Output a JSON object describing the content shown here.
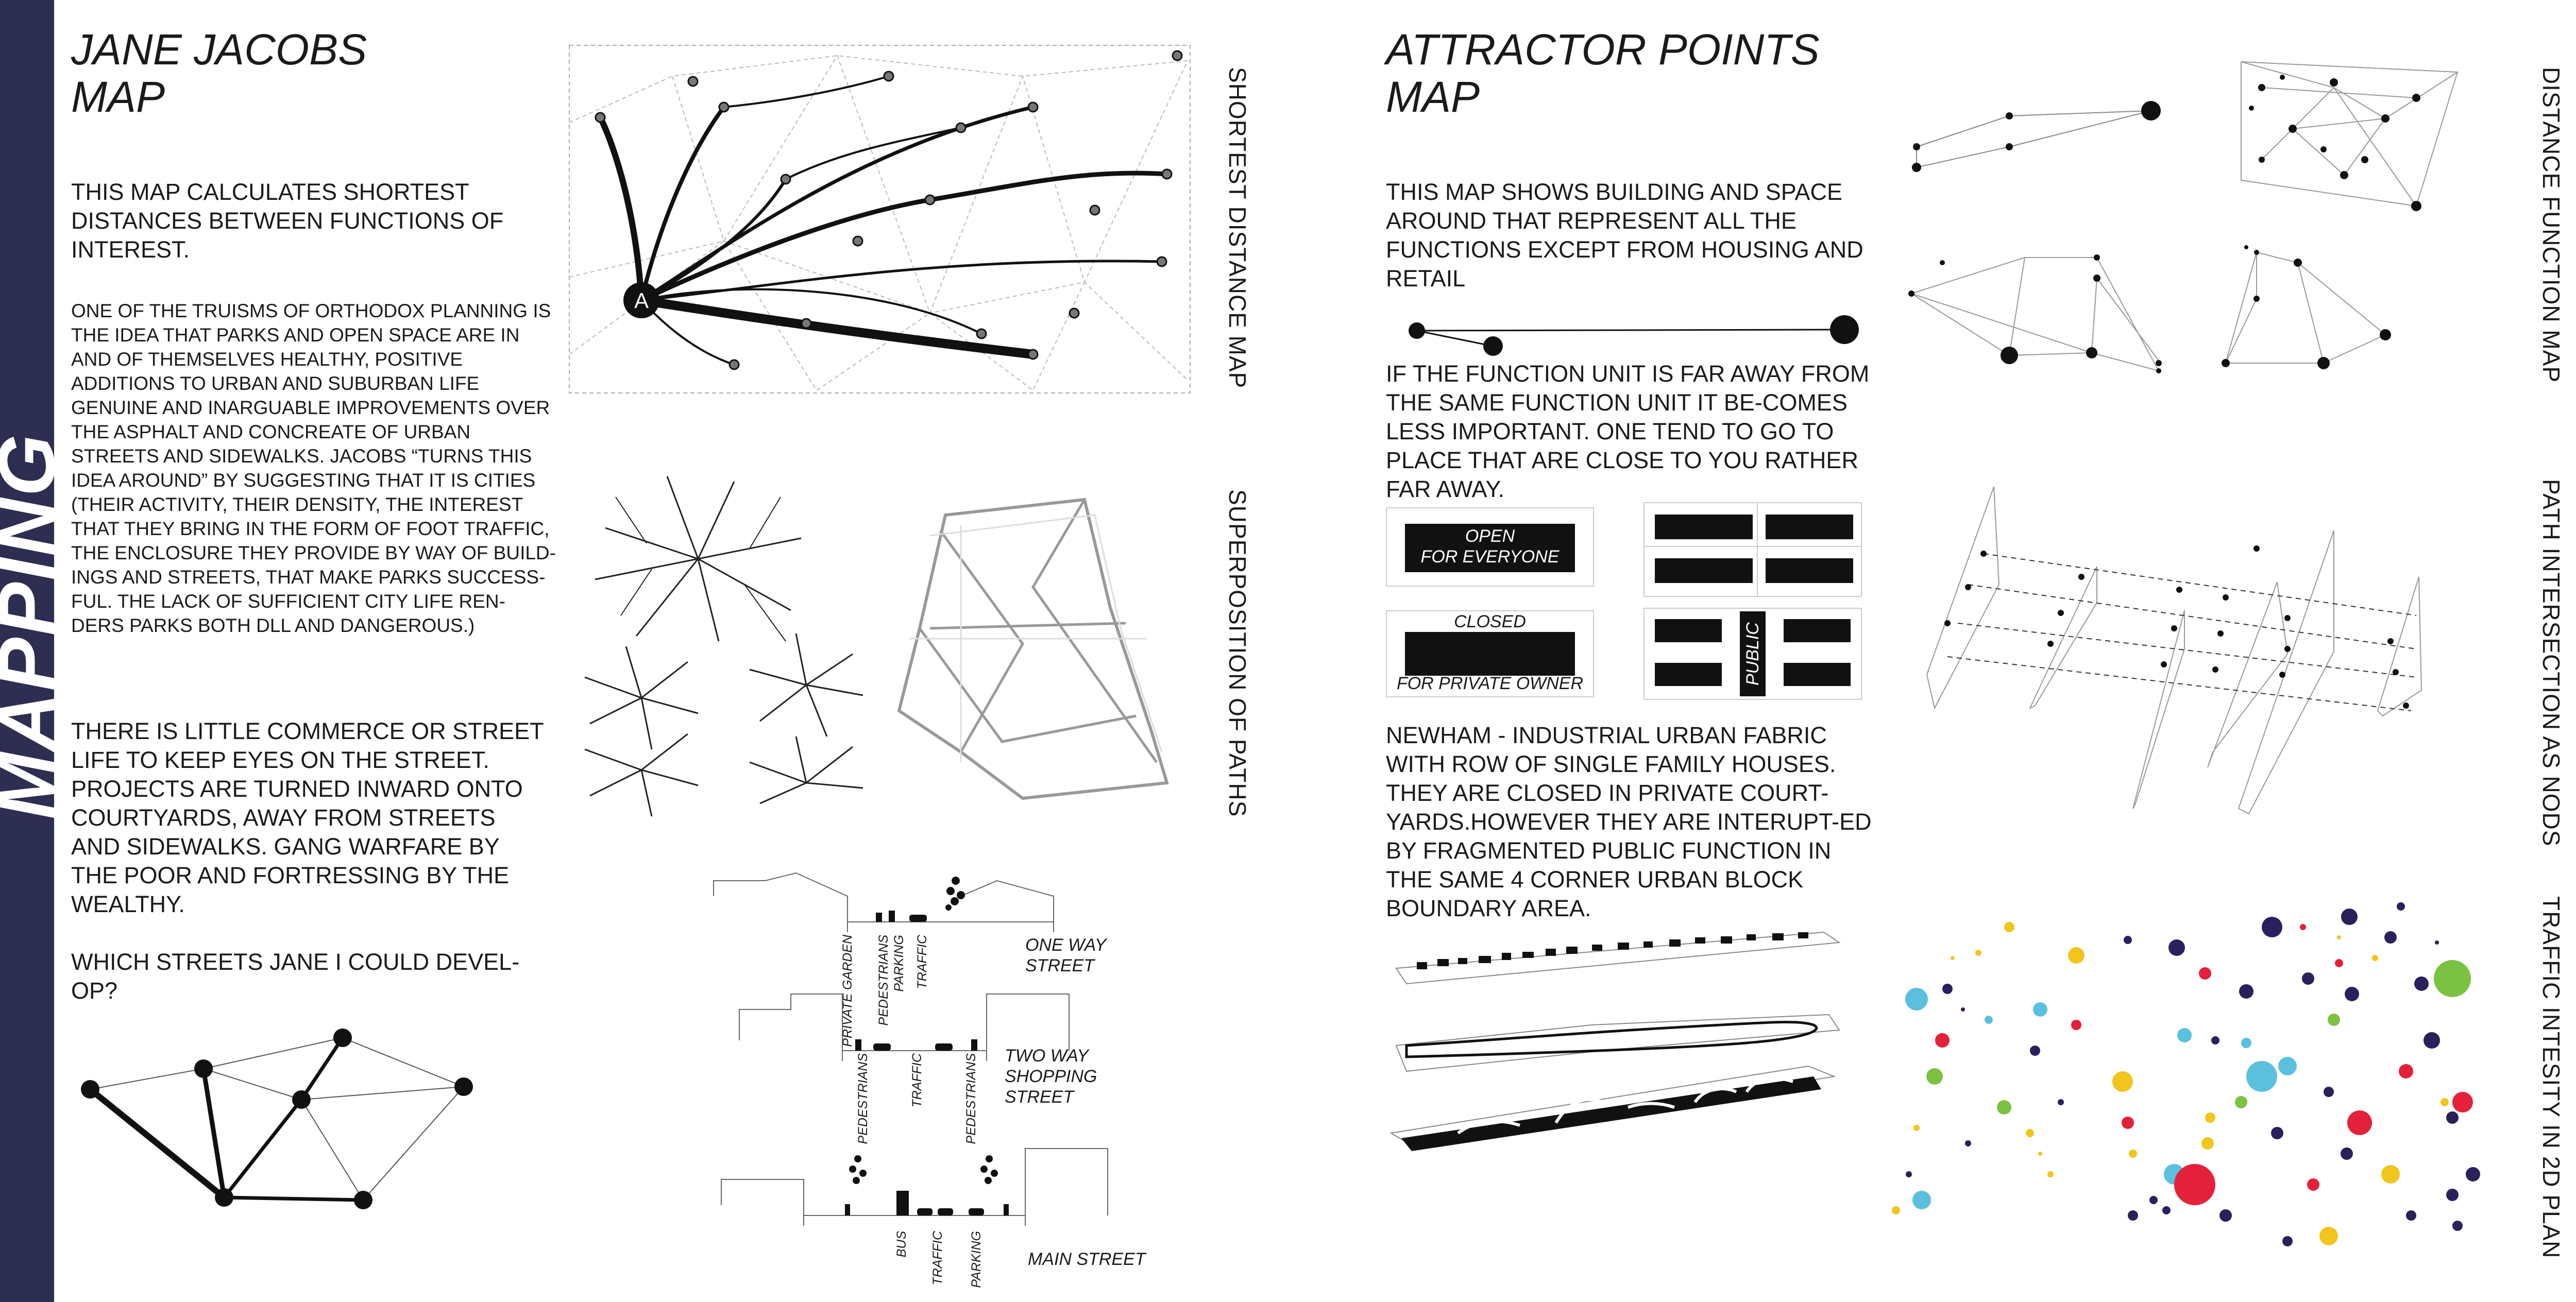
{
  "sidebar": {
    "title": "MAPPING"
  },
  "left": {
    "title_line1": "JANE JACOBS",
    "title_line2": "MAP",
    "intro": "THIS MAP CALCULATES SHORTEST DISTANCES BETWEEN FUNCTIONS OF INTEREST.",
    "quote": "ONE OF THE TRUISMS OF ORTHODOX PLANNING IS THE IDEA THAT PARKS AND OPEN SPACE ARE IN AND OF THEMSELVES HEALTHY, POSITIVE ADDITIONS TO URBAN AND SUBURBAN LIFE GENUINE AND INARGUABLE IMPROVEMENTS OVER THE ASPHALT AND CONCREATE OF URBAN STREETS AND SIDEWALKS. JACOBS “TURNS THIS IDEA AROUND” BY SUGGESTING THAT IT IS CITIES (THEIR ACTIVITY, THEIR DENSITY, THE INTEREST THAT THEY BRING IN THE FORM OF FOOT TRAFFIC, THE ENCLOSURE THEY PROVIDE BY WAY OF BUILD-INGS AND STREETS, THAT MAKE PARKS SUCCESS-FUL. THE LACK OF SUFFICIENT CITY LIFE REN-DERS PARKS BOTH DLL AND DANGEROUS.)",
    "para2": "THERE IS LITTLE COMMERCE OR STREET LIFE TO KEEP EYES ON THE STREET. PROJECTS ARE TURNED INWARD ONTO COURTYARDS, AWAY FROM STREETS AND SIDEWALKS. GANG WARFARE BY THE POOR AND FORTRESSING BY THE WEALTHY.",
    "question": "WHICH STREETS JANE I COULD DEVEL-OP?",
    "label_shortest": "SHORTEST DISTANCE MAP",
    "label_superposition": "SUPERPOSITION OF PATHS",
    "node_label": "A",
    "sections": {
      "one_way_line1": "ONE WAY",
      "one_way_line2": "STREET",
      "private_garden": "PRIVATE GARDEN",
      "pedestrians": "PEDESTRIANS",
      "parking": "PARKING",
      "traffic": "TRAFFIC",
      "two_way_line1": "TWO WAY",
      "two_way_line2": "SHOPPING",
      "two_way_line3": "STREET",
      "main_street": "MAIN STREET",
      "bus": "BUS"
    }
  },
  "right": {
    "title_line1": "ATTRACTOR POINTS",
    "title_line2": "MAP",
    "intro": "THIS MAP SHOWS BUILDING AND SPACE AROUND THAT REPRESENT ALL THE FUNCTIONS EXCEPT FROM HOUSING AND RETAIL",
    "para2": "IF THE FUNCTION UNIT IS FAR AWAY FROM THE SAME FUNCTION UNIT IT BE-COMES LESS IMPORTANT. ONE TEND TO GO TO PLACE THAT ARE CLOSE TO YOU RATHER FAR AWAY.",
    "open_line1": "OPEN",
    "open_line2": "FOR EVERYONE",
    "closed": "CLOSED",
    "private_owner": "FOR PRIVATE OWNER",
    "public": "PUBLIC",
    "para3": "NEWHAM - INDUSTRIAL URBAN FABRIC WITH ROW OF SINGLE FAMILY HOUSES. THEY ARE CLOSED IN PRIVATE COURT-YARDS.HOWEVER THEY ARE INTERUPT-ED BY FRAGMENTED PUBLIC FUNCTION IN THE SAME 4 CORNER URBAN BLOCK BOUNDARY AREA.",
    "label_distance": "DISTANCE FUNCTION MAP",
    "label_path": "PATH INTERSECTION AS NODS",
    "label_traffic": "TRAFFIC INTESITY IN 2D PLAN"
  },
  "colors": {
    "sidebar": "#2e2e52",
    "navy_dot": "#2b1f5c",
    "yellow_dot": "#f2c51c",
    "green_dot": "#7cc242",
    "cyan_dot": "#5bc0de",
    "red_dot": "#e5203a"
  }
}
